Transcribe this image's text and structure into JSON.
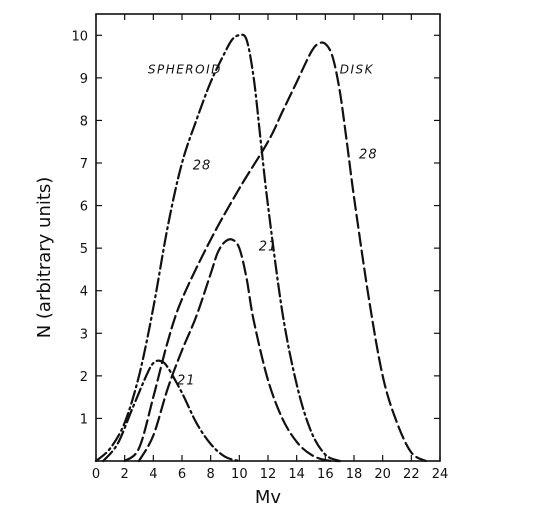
{
  "chart_data": {
    "type": "line",
    "title": "",
    "xlabel": "Mv",
    "ylabel": "N (arbitrary units)",
    "xlim": [
      0,
      24
    ],
    "ylim": [
      0,
      10.5
    ],
    "xticks": [
      "0",
      "2",
      "4",
      "6",
      "8",
      "10",
      "12",
      "14",
      "16",
      "18",
      "20",
      "22",
      "24"
    ],
    "yticks": [
      "1",
      "2",
      "3",
      "4",
      "5",
      "6",
      "7",
      "8",
      "9",
      "10"
    ],
    "grid": false,
    "legend": "none",
    "annotations": [
      {
        "text": "SPHEROID",
        "x": 6.2,
        "y": 9.1
      },
      {
        "text": "DISK",
        "x": 18.2,
        "y": 9.1
      },
      {
        "text": "28",
        "x": 7.4,
        "y": 6.85
      },
      {
        "text": "28",
        "x": 19.0,
        "y": 7.1
      },
      {
        "text": "21",
        "x": 12.0,
        "y": 4.95
      },
      {
        "text": "21",
        "x": 6.3,
        "y": 1.8
      }
    ],
    "series": [
      {
        "style": "dash-dot",
        "x": [
          0,
          1,
          2,
          3,
          4,
          5,
          6,
          7,
          8,
          9,
          9.5,
          10,
          10.5,
          11,
          11.5,
          12,
          13,
          14,
          15,
          16,
          17
        ],
        "values": [
          0,
          0.3,
          0.9,
          2.0,
          3.6,
          5.5,
          7.0,
          8.0,
          8.9,
          9.6,
          9.9,
          10.0,
          9.9,
          9.0,
          7.5,
          6.0,
          3.5,
          1.8,
          0.7,
          0.15,
          0
        ]
      },
      {
        "style": "dash-dot",
        "x": [
          0.5,
          1.5,
          2.5,
          3.5,
          4,
          4.5,
          5,
          6,
          7,
          8,
          9,
          10
        ],
        "values": [
          0,
          0.4,
          1.2,
          2.0,
          2.3,
          2.35,
          2.2,
          1.6,
          0.9,
          0.4,
          0.1,
          0
        ]
      },
      {
        "style": "dash",
        "x": [
          2,
          3,
          4,
          5,
          6,
          8,
          10,
          12,
          13,
          14,
          15,
          15.5,
          16,
          16.5,
          17,
          17.5,
          18,
          19,
          20,
          21,
          22,
          23
        ],
        "values": [
          0,
          0.3,
          1.5,
          2.8,
          3.8,
          5.2,
          6.4,
          7.5,
          8.2,
          8.9,
          9.6,
          9.8,
          9.8,
          9.5,
          8.7,
          7.5,
          6.2,
          3.9,
          2.0,
          0.9,
          0.2,
          0
        ]
      },
      {
        "style": "dash",
        "x": [
          3,
          4,
          5,
          6,
          7,
          8,
          8.5,
          9,
          9.5,
          10,
          10.5,
          11,
          12,
          13,
          14,
          15,
          16,
          17
        ],
        "values": [
          0,
          0.6,
          1.7,
          2.6,
          3.4,
          4.4,
          4.9,
          5.15,
          5.2,
          5.0,
          4.3,
          3.3,
          1.9,
          1.0,
          0.45,
          0.15,
          0.02,
          0
        ]
      }
    ]
  }
}
